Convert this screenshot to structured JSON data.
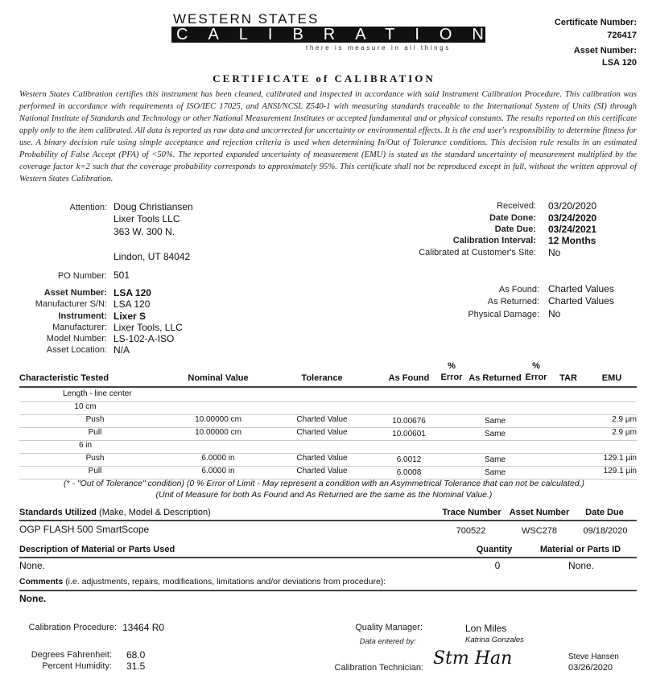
{
  "logo": {
    "line1": "WESTERN STATES",
    "line2": "CALIBRATION",
    "tagline": "there is measure in all things"
  },
  "header": {
    "cert_label": "Certificate Number:",
    "cert_value": "726417",
    "asset_label": "Asset Number:",
    "asset_value": "LSA 120"
  },
  "title": "CERTIFICATE of CALIBRATION",
  "statement": "Western States Calibration certifies this instrument has been cleaned, calibrated and inspected in accordance with said Instrument Calibration Procedure. This calibration was performed in accordance with requirements of ISO/IEC 17025, and ANSI/NCSL Z540-1 with measuring standards traceable to the International System of Units (SI) through National Institute of Standards and Technology or other National Measurement Institutes or accepted fundamental and or physical constants. The results reported on this certificate apply only to the item calibrated. All data is reported as raw data and uncorrected for uncertainty or environmental effects. It is the end user's responsibility to determine fitness for use. A binary decision rule using simple acceptance and rejection criteria is used when determining In/Out of Tolerance conditions. This decision rule results in an estimated Probability of False Accept (PFA) of <50%. The reported expanded uncertainty of measurement (EMU) is stated as the standard uncertainty of measurement multiplied by the coverage factor k=2 such that the coverage probability corresponds to approximately 95%. This certificate shall not be reproduced except in full, without the written approval of Western States Calibration.",
  "customer": {
    "attention_label": "Attention:",
    "name": "Doug Christiansen",
    "company": "Lixer Tools LLC",
    "address1": "363 W. 300 N.",
    "address2": "Lindon, UT 84042",
    "po_label": "PO Number:",
    "po": "501"
  },
  "dates": {
    "received_label": "Received:",
    "received": "03/20/2020",
    "done_label": "Date Done:",
    "done": "03/24/2020",
    "due_label": "Date Due:",
    "due": "03/24/2021",
    "interval_label": "Calibration Interval:",
    "interval": "12 Months",
    "site_label": "Calibrated at Customer's Site:",
    "site": "No"
  },
  "instrument": {
    "asset_label": "Asset Number:",
    "asset": "LSA 120",
    "sn_label": "Manufacturer S/N:",
    "sn": "LSA 120",
    "inst_label": "Instrument:",
    "inst": "Lixer S",
    "mfr_label": "Manufacturer:",
    "mfr": "Lixer Tools, LLC",
    "model_label": "Model Number:",
    "model": "LS-102-A-ISO",
    "loc_label": "Asset Location:",
    "loc": "N/A"
  },
  "condition": {
    "found_label": "As Found:",
    "found": "Charted Values",
    "returned_label": "As Returned:",
    "returned": "Charted Values",
    "damage_label": "Physical Damage:",
    "damage": "No"
  },
  "results": {
    "headers": {
      "char": "Characteristic Tested",
      "nominal": "Nominal Value",
      "tol": "Tolerance",
      "found": "As Found",
      "pct": "%",
      "err": "Error",
      "returned": "As Returned",
      "tar": "TAR",
      "emu": "EMU"
    },
    "rows": [
      {
        "char": "Length - line center"
      },
      {
        "char": "10 cm"
      },
      {
        "char": "Push",
        "nominal": "10.00000 cm",
        "tol": "Charted Value",
        "found": "10.00676",
        "returned": "Same",
        "emu": "2.9 µm"
      },
      {
        "char": "Pull",
        "nominal": "10.00000 cm",
        "tol": "Charted Value",
        "found": "10.00601",
        "returned": "Same",
        "emu": "2.9 µm"
      },
      {
        "char": "6 in"
      },
      {
        "char": "Push",
        "nominal": "6.0000 in",
        "tol": "Charted Value",
        "found": "6.0012",
        "returned": "Same",
        "emu": "129.1 µin"
      },
      {
        "char": "Pull",
        "nominal": "6.0000 in",
        "tol": "Charted Value",
        "found": "6.0008",
        "returned": "Same",
        "emu": "129.1 µin"
      }
    ],
    "note1": "(* - \"Out of Tolerance\" condition) (0 % Error of Limit - May represent a condition with an Asymmetrical Tolerance that can not be calculated.)",
    "note2": "(Unit of Measure for both As Found and As Returned are the same as the Nominal Value.)"
  },
  "standards": {
    "label": "Standards Utilized",
    "sub": "(Make, Model & Description)",
    "trace_h": "Trace Number",
    "asset_h": "Asset Number",
    "due_h": "Date Due",
    "desc": "OGP FLASH 500 SmartScope",
    "trace": "700522",
    "asset": "WSC278",
    "due": "09/18/2020"
  },
  "parts": {
    "label": "Description of Material or Parts Used",
    "qty_h": "Quantity",
    "id_h": "Material or Parts ID",
    "desc": "None.",
    "qty": "0",
    "id": "None."
  },
  "comments": {
    "label": "Comments",
    "sub": "(i.e. adjustments, repairs, modifications, limitations and/or deviations from procedure):",
    "value": "None."
  },
  "footer": {
    "proc_label": "Calibration Procedure:",
    "proc": "13464 R0",
    "temp_label": "Degrees Fahrenheit:",
    "temp": "68.0",
    "hum_label": "Percent Humidity:",
    "hum": "31.5",
    "qm_label": "Quality Manager:",
    "qm": "Lon Miles",
    "entered_label": "Data entered by:",
    "entered": "Katrina Gonzales",
    "tech_label": "Calibration Technician:",
    "signature": "Steve Hansen",
    "tech": "Steve Hansen",
    "tech_date": "03/26/2020"
  }
}
